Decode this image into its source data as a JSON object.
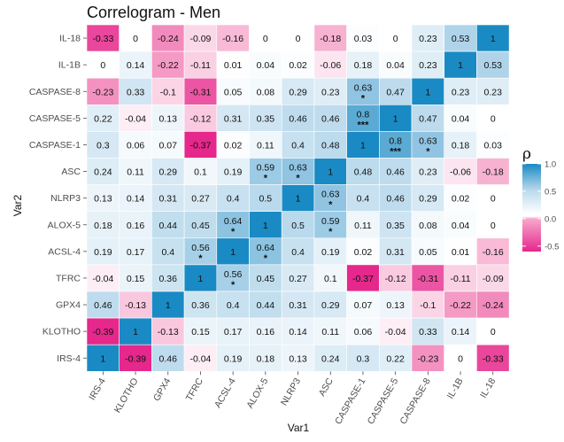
{
  "chart_data": {
    "type": "heatmap",
    "title": "Correlogram - Men",
    "xlabel": "Var1",
    "ylabel": "Var2",
    "x_categories": [
      "IRS-4",
      "KLOTHO",
      "GPX4",
      "TFRC",
      "ACSL-4",
      "ALOX-5",
      "NLRP3",
      "ASC",
      "CASPASE-1",
      "CASPASE-5",
      "CASPASE-8",
      "IL-1B",
      "IL-18"
    ],
    "y_categories_top_to_bottom": [
      "IL-18",
      "IL-1B",
      "CASPASE-8",
      "CASPASE-5",
      "CASPASE-1",
      "ASC",
      "NLRP3",
      "ALOX-5",
      "ACSL-4",
      "TFRC",
      "GPX4",
      "KLOTHO",
      "IRS-4"
    ],
    "values": [
      [
        "-0.33",
        "0",
        "-0.24",
        "-0.09",
        "-0.16",
        "0",
        "0",
        "-0.18",
        "0.03",
        "0",
        "0.23",
        "0.53",
        "1"
      ],
      [
        "0",
        "0.14",
        "-0.22",
        "-0.11",
        "0.01",
        "0.04",
        "0.02",
        "-0.06",
        "0.18",
        "0.04",
        "0.23",
        "1",
        "0.53"
      ],
      [
        "-0.23",
        "0.33",
        "-0.1",
        "-0.31",
        "0.05",
        "0.08",
        "0.29",
        "0.23",
        "0.63",
        "0.47",
        "1",
        "0.23",
        "0.23"
      ],
      [
        "0.22",
        "-0.04",
        "0.13",
        "-0.12",
        "0.31",
        "0.35",
        "0.46",
        "0.46",
        "0.8",
        "1",
        "0.47",
        "0.04",
        "0"
      ],
      [
        "0.3",
        "0.06",
        "0.07",
        "-0.37",
        "0.02",
        "0.11",
        "0.4",
        "0.48",
        "1",
        "0.8",
        "0.63",
        "0.18",
        "0.03"
      ],
      [
        "0.24",
        "0.11",
        "0.29",
        "0.1",
        "0.19",
        "0.59",
        "0.63",
        "1",
        "0.48",
        "0.46",
        "0.23",
        "-0.06",
        "-0.18"
      ],
      [
        "0.13",
        "0.14",
        "0.31",
        "0.27",
        "0.4",
        "0.5",
        "1",
        "0.63",
        "0.4",
        "0.46",
        "0.29",
        "0.02",
        "0"
      ],
      [
        "0.18",
        "0.16",
        "0.44",
        "0.45",
        "0.64",
        "1",
        "0.5",
        "0.59",
        "0.11",
        "0.35",
        "0.08",
        "0.04",
        "0"
      ],
      [
        "0.19",
        "0.17",
        "0.4",
        "0.56",
        "1",
        "0.64",
        "0.4",
        "0.19",
        "0.02",
        "0.31",
        "0.05",
        "0.01",
        "-0.16"
      ],
      [
        "-0.04",
        "0.15",
        "0.36",
        "1",
        "0.56",
        "0.45",
        "0.27",
        "0.1",
        "-0.37",
        "-0.12",
        "-0.31",
        "-0.11",
        "-0.09"
      ],
      [
        "0.46",
        "-0.13",
        "1",
        "0.36",
        "0.4",
        "0.44",
        "0.31",
        "0.29",
        "0.07",
        "0.13",
        "-0.1",
        "-0.22",
        "-0.24"
      ],
      [
        "-0.39",
        "1",
        "-0.13",
        "0.15",
        "0.17",
        "0.16",
        "0.14",
        "0.11",
        "0.06",
        "-0.04",
        "0.33",
        "0.14",
        "0"
      ],
      [
        "1",
        "-0.39",
        "0.46",
        "-0.04",
        "0.19",
        "0.18",
        "0.13",
        "0.24",
        "0.3",
        "0.22",
        "-0.23",
        "0",
        "-0.33"
      ]
    ],
    "significance": [
      [
        "",
        "",
        "",
        "",
        "",
        "",
        "",
        "",
        "",
        "",
        "",
        "",
        ""
      ],
      [
        "",
        "",
        "",
        "",
        "",
        "",
        "",
        "",
        "",
        "",
        "",
        "",
        ""
      ],
      [
        "",
        "",
        "",
        "",
        "",
        "",
        "",
        "",
        "*",
        "",
        "",
        "",
        ""
      ],
      [
        "",
        "",
        "",
        "",
        "",
        "",
        "",
        "",
        "***",
        "",
        "",
        "",
        ""
      ],
      [
        "",
        "",
        "",
        "",
        "",
        "",
        "",
        "",
        "",
        "***",
        "*",
        "",
        ""
      ],
      [
        "",
        "",
        "",
        "",
        "",
        "*",
        "*",
        "",
        "",
        "",
        "",
        "",
        ""
      ],
      [
        "",
        "",
        "",
        "",
        "",
        "",
        "",
        "*",
        "",
        "",
        "",
        "",
        ""
      ],
      [
        "",
        "",
        "",
        "",
        "*",
        "",
        "",
        "*",
        "",
        "",
        "",
        "",
        ""
      ],
      [
        "",
        "",
        "",
        "*",
        "",
        "*",
        "",
        "",
        "",
        "",
        "",
        "",
        ""
      ],
      [
        "",
        "",
        "",
        "",
        "*",
        "",
        "",
        "",
        "",
        "",
        "",
        "",
        ""
      ],
      [
        "",
        "",
        "",
        "",
        "",
        "",
        "",
        "",
        "",
        "",
        "",
        "",
        ""
      ],
      [
        "",
        "",
        "",
        "",
        "",
        "",
        "",
        "",
        "",
        "",
        "",
        "",
        ""
      ],
      [
        "",
        "",
        "",
        "",
        "",
        "",
        "",
        "",
        "",
        "",
        "",
        "",
        ""
      ]
    ],
    "legend": {
      "title": "ρ",
      "ticks": [
        "1.0",
        "0.5",
        "0.0",
        "-0.5"
      ],
      "tick_values": [
        1.0,
        0.5,
        0.0,
        -0.5
      ],
      "range": [
        -0.6,
        1.0
      ],
      "placement": "right"
    },
    "colors": {
      "high": "#1a8ac4",
      "mid_high": "#b9d9ec",
      "mid": "#ffffff",
      "mid_low": "#f6a9cc",
      "low": "#e6278c",
      "grid_line": "#ffffff"
    }
  }
}
